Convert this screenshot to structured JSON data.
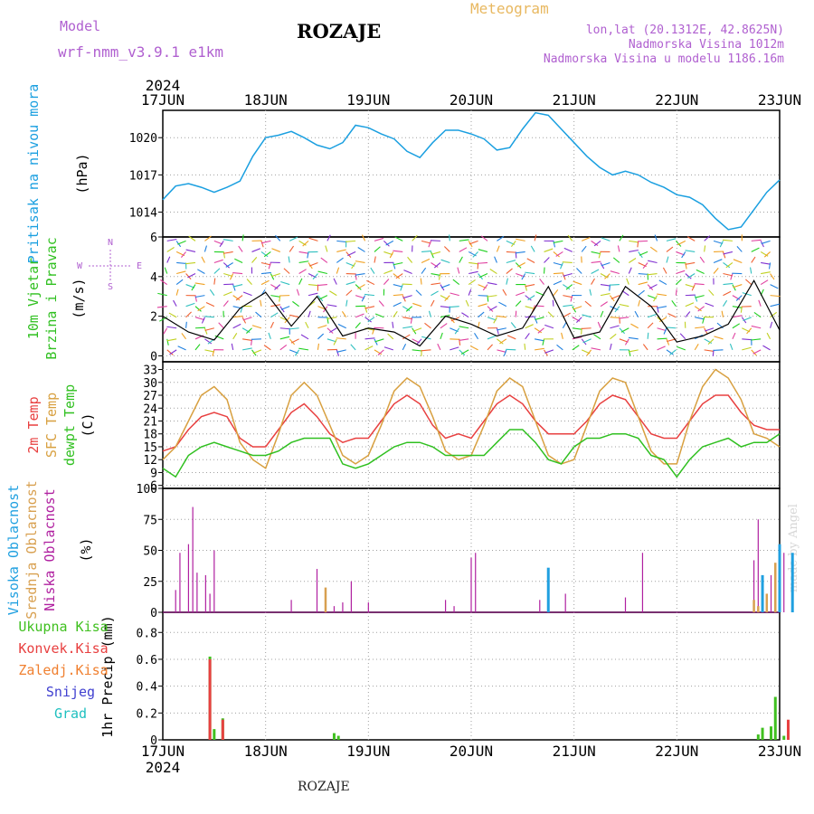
{
  "header": {
    "model_label": "Model",
    "model_name": "wrf-nmm_v3.9.1  e1km",
    "title": "ROZAJE",
    "subtitle": "Meteogram",
    "info_lines": [
      "lon,lat (20.1312E, 42.8625N)",
      "Nadmorska Visina 1012m",
      "Nadmorska Visina u modelu 1186.16m"
    ]
  },
  "footer": {
    "station": "ROZAJE",
    "credit": "made by Angel"
  },
  "time_axis": {
    "year": "2024",
    "dates": [
      "17JUN",
      "18JUN",
      "19JUN",
      "20JUN",
      "21JUN",
      "22JUN",
      "23JUN"
    ]
  },
  "panels_text": {
    "pressure": {
      "ylabel": "Pritisak na nivou mora",
      "unit": "(hPa)"
    },
    "wind": {
      "ylabel_1": "10m Vjetar",
      "ylabel_2": "Brzina i Pravac",
      "unit": "(m/s)",
      "compass": {
        "n": "N",
        "s": "S",
        "e": "E",
        "w": "W"
      }
    },
    "temp": {
      "ylabel_1": "2m Temp",
      "ylabel_2": "SFC Temp",
      "ylabel_3": "dewpt Temp",
      "unit": "(C)"
    },
    "cloud": {
      "ylabel_1": "Visoka Oblacnost",
      "ylabel_2": "Srednja Oblacnost",
      "ylabel_3": "Niska Oblacnost",
      "unit": "(%)"
    },
    "precip": {
      "legend": [
        "Ukupna Kisa",
        "Konvek.Kisa",
        "Zaledj.Kisa",
        "Snijeg",
        "Grad"
      ],
      "ylabel": "1hr Precip (mm)"
    }
  },
  "colors": {
    "pressure": "#1a9fe0",
    "temp2m": "#e84040",
    "sfc": "#d8a040",
    "dewpt": "#30c020",
    "wind_speed": "#000000",
    "high_cloud": "#20a0e0",
    "mid_cloud": "#d8a050",
    "low_cloud": "#b020a0",
    "rain": "#40c020",
    "conv": "#e84040",
    "frz": "#f08030",
    "snow": "#4040d0",
    "hail": "#20c0c0",
    "model_text": "#b060d0",
    "meteogram_text": "#e8b860"
  },
  "chart_data": [
    {
      "type": "line",
      "name": "pressure",
      "x": [
        0,
        3,
        6,
        9,
        12,
        15,
        18,
        21,
        24,
        27,
        30,
        33,
        36,
        39,
        42,
        45,
        48,
        51,
        54,
        57,
        60,
        63,
        66,
        69,
        72,
        75,
        78,
        81,
        84,
        87,
        90,
        93,
        96,
        99,
        102,
        105,
        108,
        111,
        114,
        117,
        120,
        123,
        126,
        129,
        132,
        135,
        138,
        141,
        144
      ],
      "y": [
        1015.0,
        1016.1,
        1016.3,
        1016.0,
        1015.6,
        1016.0,
        1016.5,
        1018.5,
        1020.0,
        1020.2,
        1020.5,
        1020.0,
        1019.4,
        1019.1,
        1019.6,
        1021.0,
        1020.8,
        1020.3,
        1019.9,
        1018.9,
        1018.4,
        1019.6,
        1020.6,
        1020.6,
        1020.3,
        1019.9,
        1019.0,
        1019.2,
        1020.7,
        1022.0,
        1021.8,
        1020.7,
        1019.6,
        1018.5,
        1017.6,
        1017.0,
        1017.3,
        1017.0,
        1016.4,
        1016.0,
        1015.4,
        1015.2,
        1014.6,
        1013.5,
        1012.6,
        1012.8,
        1014.2,
        1015.6,
        1016.6
      ],
      "ylim": [
        1012.0,
        1022.2
      ],
      "yticks": [
        1014,
        1017,
        1020
      ]
    },
    {
      "type": "line",
      "name": "wind_speed",
      "x": [
        0,
        6,
        12,
        18,
        24,
        30,
        36,
        42,
        48,
        54,
        60,
        66,
        72,
        78,
        84,
        90,
        96,
        102,
        108,
        114,
        120,
        126,
        132,
        138,
        144
      ],
      "y": [
        2.0,
        1.2,
        0.8,
        2.4,
        3.2,
        1.5,
        3.0,
        1.0,
        1.4,
        1.2,
        0.5,
        2.0,
        1.6,
        1.0,
        1.4,
        3.5,
        0.9,
        1.2,
        3.5,
        2.5,
        0.7,
        1.0,
        1.6,
        3.8,
        1.3
      ],
      "ylim": [
        -0.3,
        6.0
      ],
      "yticks": [
        0,
        2,
        4,
        6
      ]
    },
    {
      "type": "line",
      "name": "temperature",
      "x": [
        0,
        3,
        6,
        9,
        12,
        15,
        18,
        21,
        24,
        27,
        30,
        33,
        36,
        39,
        42,
        45,
        48,
        51,
        54,
        57,
        60,
        63,
        66,
        69,
        72,
        75,
        78,
        81,
        84,
        87,
        90,
        93,
        96,
        99,
        102,
        105,
        108,
        111,
        114,
        117,
        120,
        123,
        126,
        129,
        132,
        135,
        138,
        141,
        144
      ],
      "ylim": [
        5.3,
        34.8
      ],
      "yticks": [
        6,
        9,
        12,
        15,
        18,
        21,
        24,
        27,
        30,
        33
      ],
      "series": [
        {
          "name": "2m Temp",
          "values": [
            14,
            15,
            19,
            22,
            23,
            22,
            17,
            15,
            15,
            19,
            23,
            25,
            22,
            18,
            16,
            17,
            17,
            21,
            25,
            27,
            25,
            20,
            17,
            18,
            17,
            21,
            25,
            27,
            25,
            21,
            18,
            18,
            18,
            21,
            25,
            27,
            26,
            22,
            18,
            17,
            17,
            21,
            25,
            27,
            27,
            23,
            20,
            19,
            19
          ]
        },
        {
          "name": "SFC Temp",
          "values": [
            12,
            15,
            21,
            27,
            29,
            26,
            16,
            12,
            10,
            18,
            27,
            30,
            27,
            20,
            13,
            11,
            13,
            20,
            28,
            31,
            29,
            22,
            14,
            12,
            13,
            20,
            28,
            31,
            29,
            21,
            13,
            11,
            12,
            20,
            28,
            31,
            30,
            22,
            14,
            11,
            11,
            21,
            29,
            33,
            31,
            26,
            18,
            17,
            15
          ]
        },
        {
          "name": "dewpt Temp",
          "values": [
            10,
            8,
            13,
            15,
            16,
            15,
            14,
            13,
            13,
            14,
            16,
            17,
            17,
            17,
            11,
            10,
            11,
            13,
            15,
            16,
            16,
            15,
            13,
            13,
            13,
            13,
            16,
            19,
            19,
            16,
            12,
            11,
            15,
            17,
            17,
            18,
            18,
            17,
            13,
            12,
            8,
            12,
            15,
            16,
            17,
            15,
            16,
            16,
            18
          ]
        }
      ]
    },
    {
      "type": "bar",
      "name": "cloud_cover",
      "ylim": [
        0,
        100
      ],
      "yticks": [
        0,
        25,
        50,
        75,
        100
      ],
      "series": [
        {
          "name": "Niska Oblacnost",
          "x": [
            3,
            4,
            6,
            7,
            8,
            10,
            11,
            12,
            30,
            36,
            38,
            40,
            42,
            44,
            48,
            66,
            68,
            72,
            73,
            88,
            90,
            94,
            108,
            112,
            138,
            139,
            142,
            145
          ],
          "values": [
            18,
            48,
            55,
            85,
            32,
            30,
            15,
            50,
            10,
            35,
            5,
            5,
            8,
            25,
            8,
            10,
            5,
            44,
            48,
            10,
            15,
            15,
            12,
            48,
            42,
            75,
            30,
            48
          ]
        },
        {
          "name": "Srednja Oblacnost",
          "x": [
            38,
            90,
            138,
            139,
            141,
            143,
            144
          ],
          "values": [
            20,
            8,
            10,
            5,
            15,
            40,
            55
          ]
        },
        {
          "name": "Visoka Oblacnost",
          "x": [
            90,
            140,
            144,
            147
          ],
          "values": [
            36,
            30,
            55,
            48
          ]
        }
      ]
    },
    {
      "type": "bar",
      "name": "precip",
      "ylim": [
        0,
        0.95
      ],
      "yticks": [
        0.0,
        0.2,
        0.4,
        0.6,
        0.8
      ],
      "series": [
        {
          "name": "Ukupna Kisa",
          "x": [
            11,
            12,
            14,
            40,
            41,
            139,
            140,
            142,
            143,
            145
          ],
          "values": [
            0.62,
            0.08,
            0.16,
            0.05,
            0.03,
            0.04,
            0.09,
            0.1,
            0.32,
            0.03
          ]
        },
        {
          "name": "Konvek.Kisa",
          "x": [
            11,
            14,
            146
          ],
          "values": [
            0.6,
            0.15,
            0.15
          ]
        }
      ]
    }
  ]
}
